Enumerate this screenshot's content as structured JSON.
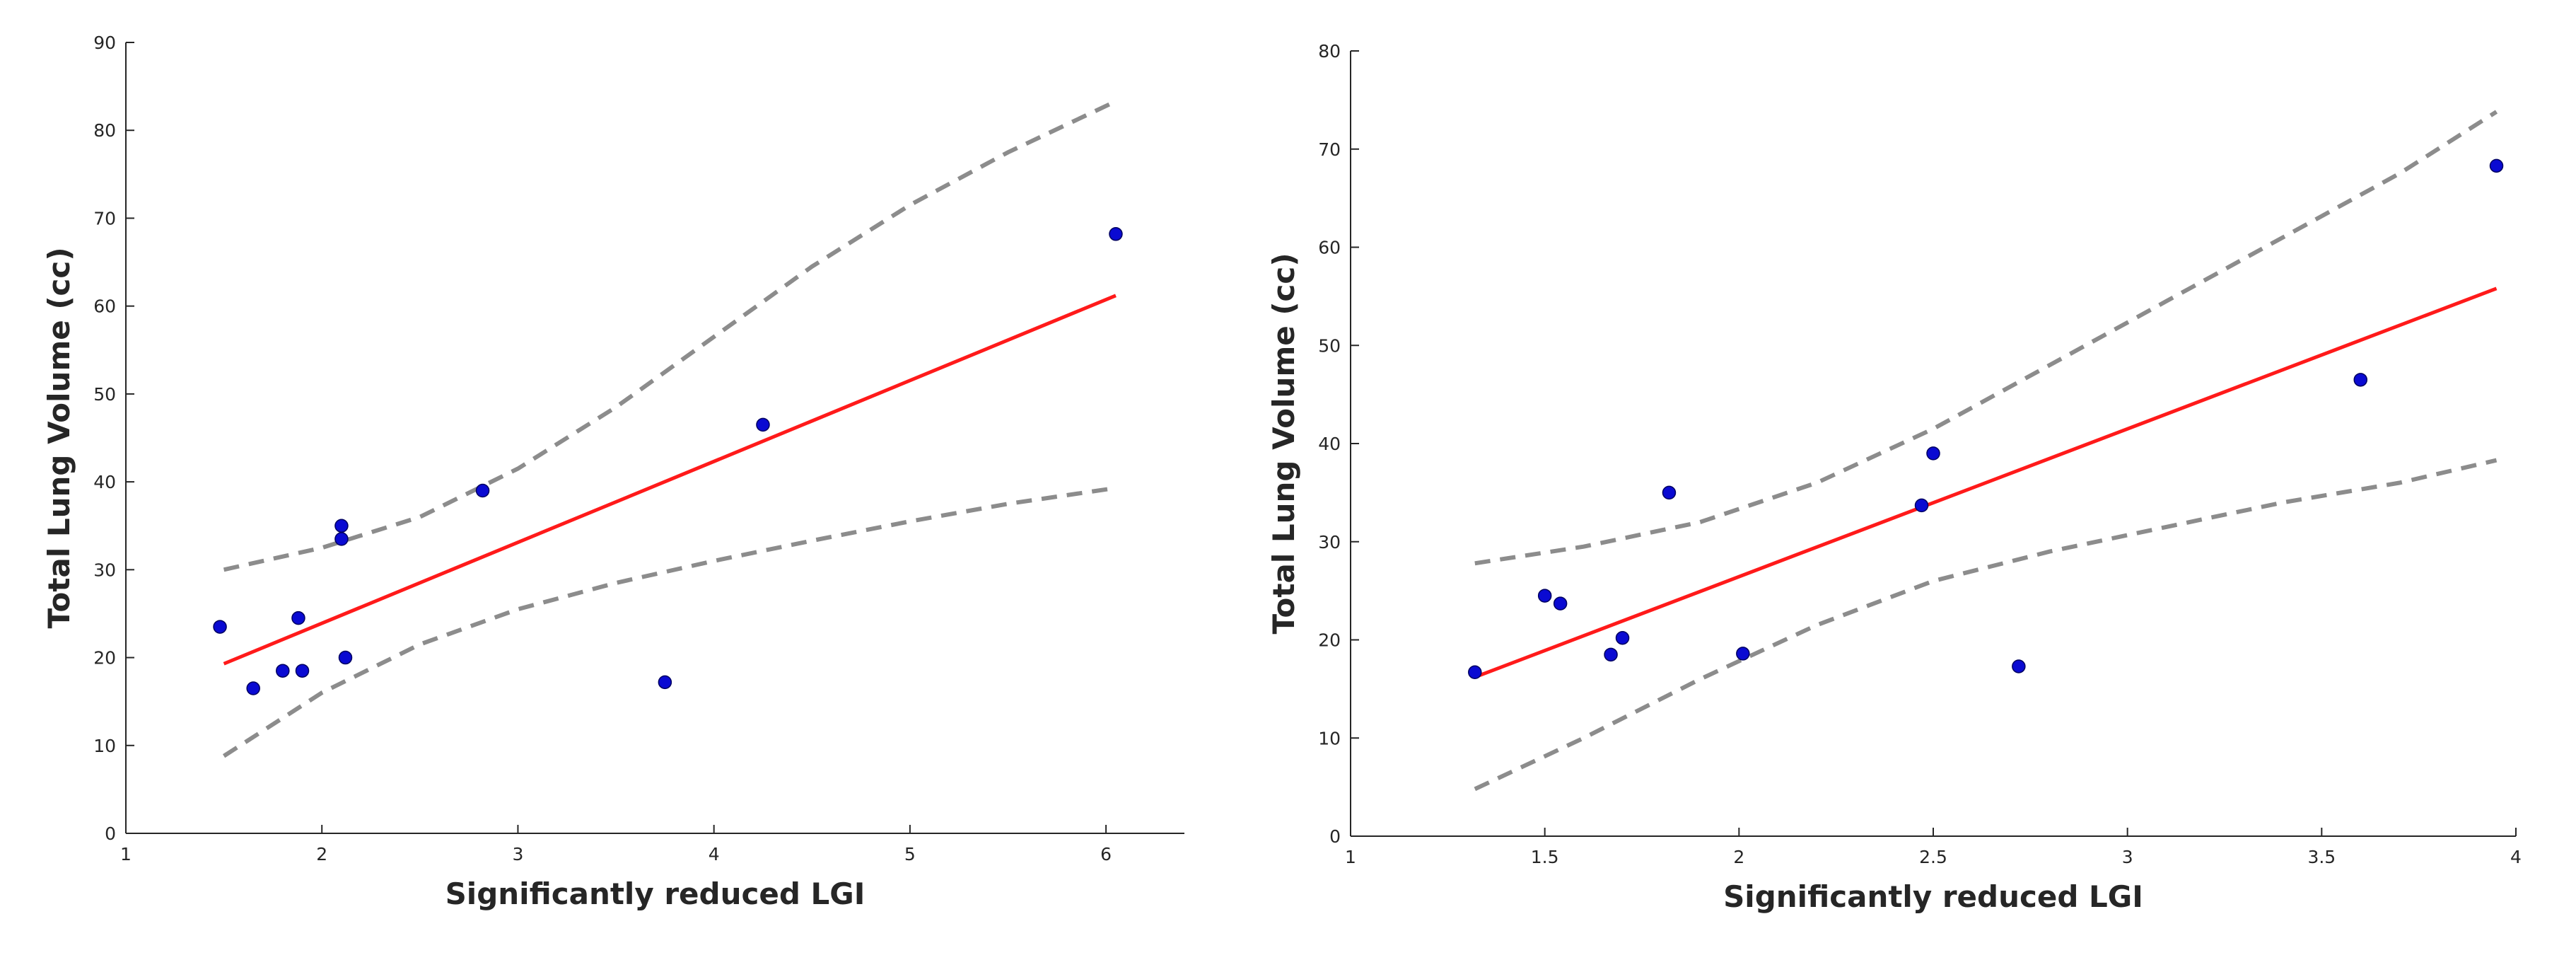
{
  "chart_data": [
    {
      "type": "scatter",
      "xlabel": "Significantly reduced LGI",
      "ylabel": "Total Lung Volume (cc)",
      "xlim": [
        1,
        6.4
      ],
      "ylim": [
        0,
        90
      ],
      "xticks": [
        1,
        2,
        3,
        4,
        5,
        6
      ],
      "yticks": [
        0,
        10,
        20,
        30,
        40,
        50,
        60,
        70,
        80,
        90
      ],
      "points": [
        [
          1.48,
          23.5
        ],
        [
          1.65,
          16.5
        ],
        [
          1.8,
          18.5
        ],
        [
          1.88,
          24.5
        ],
        [
          1.9,
          18.5
        ],
        [
          2.1,
          35.0
        ],
        [
          2.1,
          33.5
        ],
        [
          2.12,
          20.0
        ],
        [
          2.82,
          39.0
        ],
        [
          3.75,
          17.2
        ],
        [
          4.25,
          46.5
        ],
        [
          6.05,
          68.2
        ]
      ],
      "fit_line": [
        [
          1.5,
          19.3
        ],
        [
          6.05,
          61.2
        ]
      ],
      "ci_upper": [
        [
          1.5,
          30.0
        ],
        [
          2.0,
          32.5
        ],
        [
          2.5,
          36.0
        ],
        [
          3.0,
          41.5
        ],
        [
          3.5,
          48.5
        ],
        [
          4.0,
          56.5
        ],
        [
          4.5,
          64.5
        ],
        [
          5.0,
          71.5
        ],
        [
          5.5,
          77.5
        ],
        [
          6.05,
          83.3
        ]
      ],
      "ci_lower": [
        [
          1.5,
          8.8
        ],
        [
          2.0,
          16.0
        ],
        [
          2.5,
          21.5
        ],
        [
          3.0,
          25.5
        ],
        [
          3.5,
          28.5
        ],
        [
          4.0,
          31.0
        ],
        [
          4.5,
          33.3
        ],
        [
          5.0,
          35.5
        ],
        [
          5.5,
          37.5
        ],
        [
          6.05,
          39.3
        ]
      ],
      "point_color": "#0a0ad2",
      "fit_color": "#ff1a1a",
      "ci_color": "#8c8c8c"
    },
    {
      "type": "scatter",
      "xlabel": "Significantly reduced LGI",
      "ylabel": "Total Lung Volume (cc)",
      "xlim": [
        1,
        4
      ],
      "ylim": [
        0,
        80
      ],
      "xticks": [
        1,
        1.5,
        2,
        2.5,
        3,
        3.5,
        4
      ],
      "yticks": [
        0,
        10,
        20,
        30,
        40,
        50,
        60,
        70,
        80
      ],
      "points": [
        [
          1.32,
          16.7
        ],
        [
          1.5,
          24.5
        ],
        [
          1.54,
          23.7
        ],
        [
          1.67,
          18.5
        ],
        [
          1.7,
          20.2
        ],
        [
          1.82,
          35.0
        ],
        [
          2.01,
          18.6
        ],
        [
          2.47,
          33.7
        ],
        [
          2.5,
          39.0
        ],
        [
          2.72,
          17.3
        ],
        [
          3.6,
          46.5
        ],
        [
          3.95,
          68.3
        ]
      ],
      "fit_line": [
        [
          1.32,
          16.2
        ],
        [
          3.95,
          55.8
        ]
      ],
      "ci_upper": [
        [
          1.32,
          27.8
        ],
        [
          1.6,
          29.5
        ],
        [
          1.9,
          32.0
        ],
        [
          2.2,
          36.0
        ],
        [
          2.5,
          41.5
        ],
        [
          2.8,
          48.0
        ],
        [
          3.1,
          54.5
        ],
        [
          3.4,
          61.0
        ],
        [
          3.7,
          67.5
        ],
        [
          3.95,
          73.8
        ]
      ],
      "ci_lower": [
        [
          1.32,
          4.8
        ],
        [
          1.6,
          10.0
        ],
        [
          1.9,
          16.0
        ],
        [
          2.2,
          21.5
        ],
        [
          2.5,
          26.0
        ],
        [
          2.8,
          29.0
        ],
        [
          3.1,
          31.5
        ],
        [
          3.4,
          34.0
        ],
        [
          3.7,
          36.0
        ],
        [
          3.95,
          38.3
        ]
      ],
      "point_color": "#0a0ad2",
      "fit_color": "#ff1a1a",
      "ci_color": "#8c8c8c"
    }
  ]
}
